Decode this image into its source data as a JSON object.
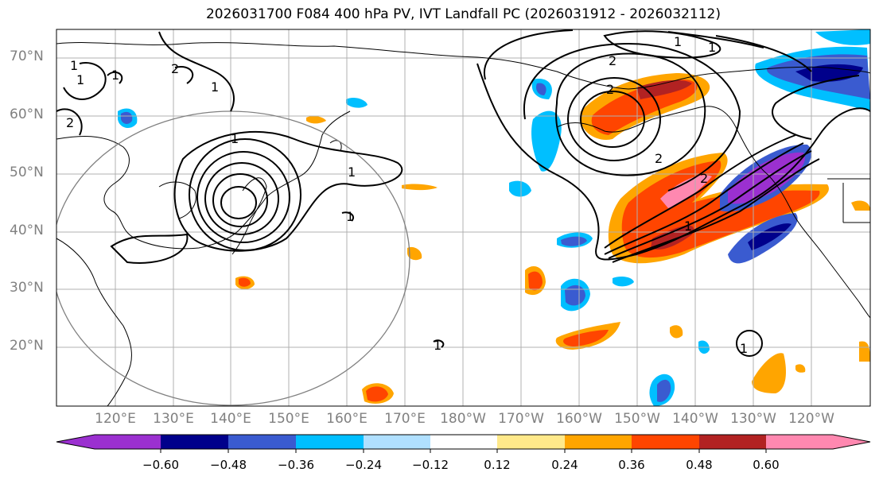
{
  "title": "2026031700 F084 400 hPa PV, IVT Landfall PC (2026031912 - 2026032112)",
  "lat_labels": [
    "70°N",
    "60°N",
    "50°N",
    "40°N",
    "30°N",
    "20°N"
  ],
  "lon_labels": [
    "120°E",
    "130°E",
    "140°E",
    "150°E",
    "160°E",
    "170°E",
    "180°W",
    "170°W",
    "160°W",
    "150°W",
    "140°W",
    "130°W",
    "120°W"
  ],
  "colorbar": {
    "tick_labels": [
      "−0.60",
      "−0.48",
      "−0.36",
      "−0.24",
      "−0.12",
      "0.12",
      "0.24",
      "0.36",
      "0.48",
      "0.60"
    ],
    "colors": [
      "#9b30d0",
      "#00008b",
      "#3a5bd0",
      "#00bfff",
      "#b0e0ff",
      "#ffffff",
      "#ffe98a",
      "#ffa500",
      "#ff4500",
      "#b22222",
      "#ff88b0"
    ]
  },
  "contour_labels": [
    "1",
    "1",
    "1",
    "2",
    "1",
    "1",
    "2",
    "1",
    "2",
    "2",
    "1",
    "2",
    "2",
    "1",
    "1",
    "1",
    "1",
    "1"
  ]
}
